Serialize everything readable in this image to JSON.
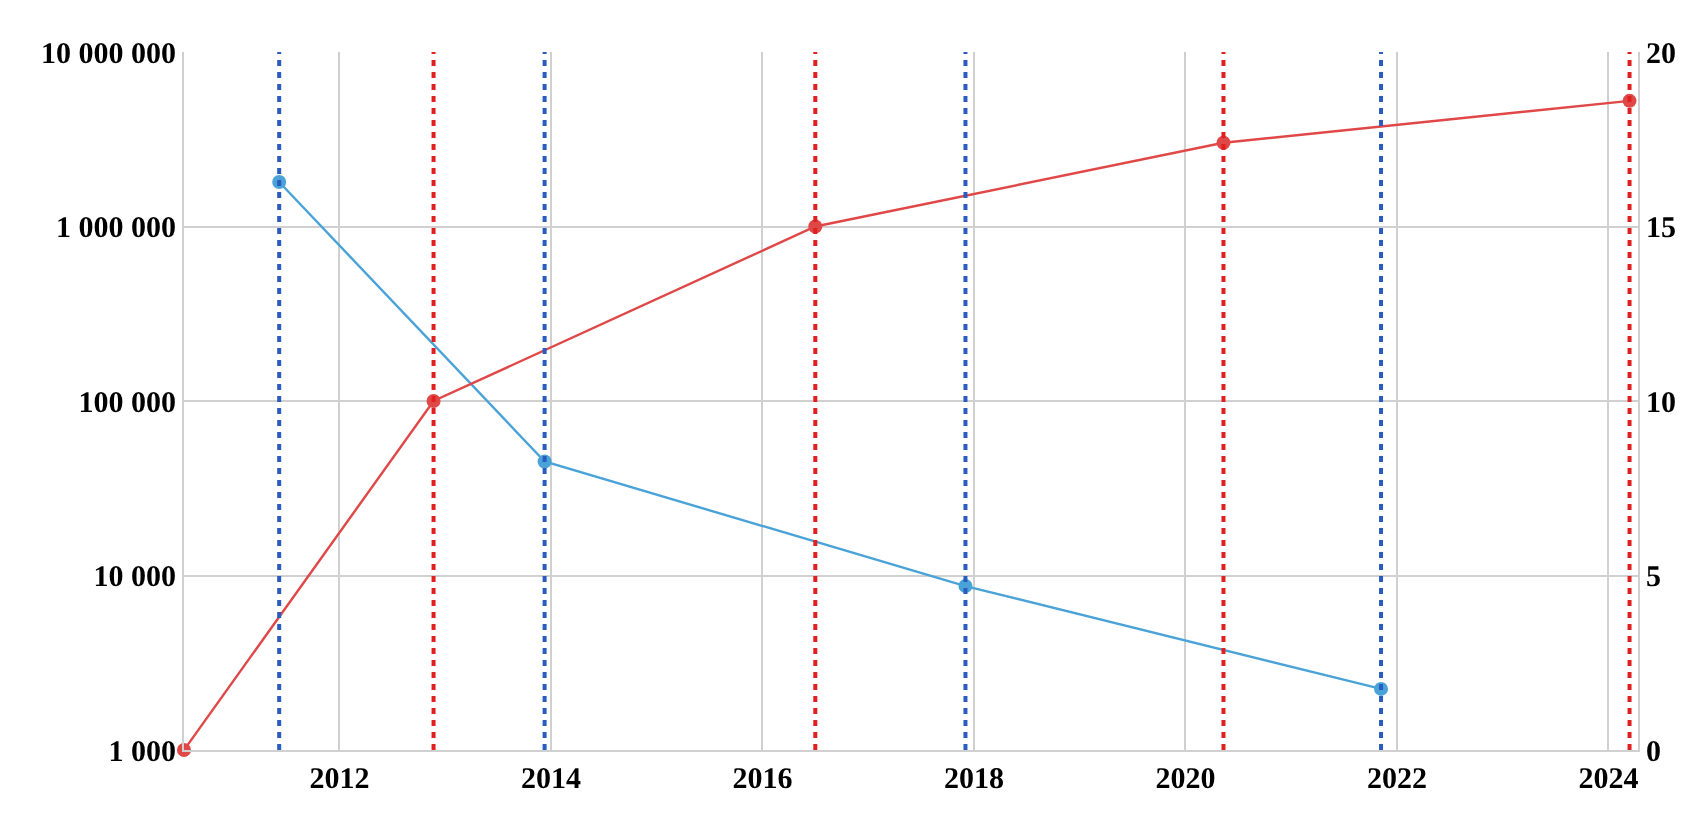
{
  "chart_data": {
    "type": "line",
    "log": "y",
    "grid": true,
    "marker": "circle",
    "line_style": "solid",
    "xlim": [
      2010.53,
      2024.28
    ],
    "xticks": [
      2012,
      2014,
      2016,
      2018,
      2020,
      2022,
      2024
    ],
    "ylim": [
      1000,
      10000000
    ],
    "yticks": [
      {
        "value": 1000,
        "label": "1 000"
      },
      {
        "value": 10000,
        "label": "10 000"
      },
      {
        "value": 100000,
        "label": "100 000"
      },
      {
        "value": 1000000,
        "label": "1 000 000"
      },
      {
        "value": 10000000,
        "label": "10 000 000"
      }
    ],
    "y2lim": [
      0,
      20
    ],
    "y2ticks": [
      0,
      5,
      10,
      15,
      20
    ],
    "series": [
      {
        "color": "#4aa3d8",
        "x": [
          2011.43,
          2013.94,
          2017.92,
          2021.85
        ],
        "values": [
          1800000,
          45000,
          8700,
          2240
        ]
      },
      {
        "color": "#e04848",
        "axis": "y2",
        "x": [
          2010.53,
          2012.89,
          2016.5,
          2020.36,
          2024.2
        ],
        "values": [
          0,
          10,
          15,
          17.4,
          18.6
        ]
      }
    ],
    "ref_lines": [
      {
        "axis": "x",
        "value": 2011.43,
        "color": "#2a5cc0",
        "line_style": "dotted"
      },
      {
        "axis": "x",
        "value": 2013.94,
        "color": "#2a5cc0",
        "line_style": "dotted"
      },
      {
        "axis": "x",
        "value": 2017.92,
        "color": "#2a5cc0",
        "line_style": "dotted"
      },
      {
        "axis": "x",
        "value": 2021.85,
        "color": "#2a5cc0",
        "line_style": "dotted"
      },
      {
        "axis": "x",
        "value": 2012.89,
        "color": "#e02020",
        "line_style": "dotted"
      },
      {
        "axis": "x",
        "value": 2016.5,
        "color": "#e02020",
        "line_style": "dotted"
      },
      {
        "axis": "x",
        "value": 2020.36,
        "color": "#e02020",
        "line_style": "dotted"
      },
      {
        "axis": "x",
        "value": 2024.2,
        "color": "#e02020",
        "line_style": "dotted"
      }
    ]
  }
}
